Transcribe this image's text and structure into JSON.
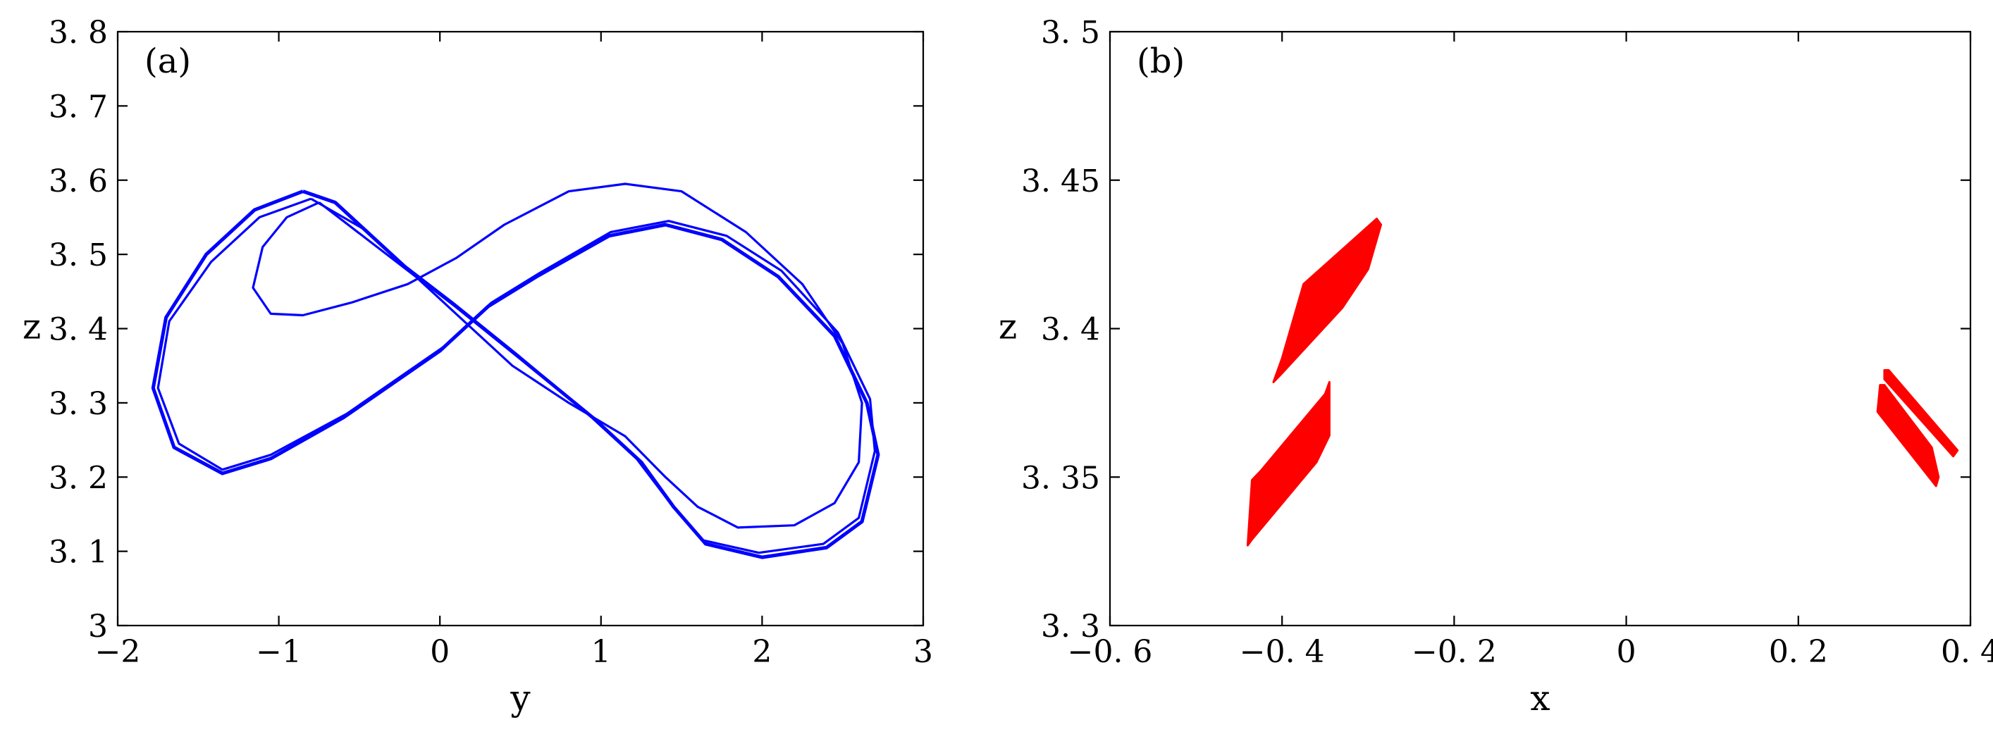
{
  "chart_data": [
    {
      "type": "line",
      "panel_label": "(a)",
      "xlabel": "y",
      "ylabel": "z",
      "xlim": [
        -2,
        3
      ],
      "ylim": [
        3,
        3.8
      ],
      "xticks": [
        -2,
        -1,
        0,
        1,
        2,
        3
      ],
      "xtick_labels": [
        "−2",
        "−1",
        "0",
        "1",
        "2",
        "3"
      ],
      "yticks": [
        3,
        3.1,
        3.2,
        3.3,
        3.4,
        3.5,
        3.6,
        3.7,
        3.8
      ],
      "ytick_labels": [
        "3",
        "3. 1",
        "3. 2",
        "3. 3",
        "3. 4",
        "3. 5",
        "3. 6",
        "3. 7",
        "3. 8"
      ],
      "color": "#0000ff",
      "grid": false,
      "series": [
        {
          "points": [
            [
              -0.85,
              3.585
            ],
            [
              -1.15,
              3.56
            ],
            [
              -1.45,
              3.5
            ],
            [
              -1.7,
              3.415
            ],
            [
              -1.78,
              3.32
            ],
            [
              -1.65,
              3.24
            ],
            [
              -1.35,
              3.205
            ],
            [
              -1.05,
              3.225
            ],
            [
              -0.6,
              3.28
            ],
            [
              0.0,
              3.37
            ],
            [
              0.3,
              3.43
            ],
            [
              0.6,
              3.47
            ],
            [
              1.05,
              3.525
            ],
            [
              1.4,
              3.54
            ],
            [
              1.75,
              3.52
            ],
            [
              2.1,
              3.47
            ],
            [
              2.45,
              3.39
            ],
            [
              2.65,
              3.3
            ],
            [
              2.72,
              3.23
            ],
            [
              2.62,
              3.14
            ],
            [
              2.4,
              3.105
            ],
            [
              2.0,
              3.092
            ],
            [
              1.65,
              3.11
            ],
            [
              1.45,
              3.16
            ],
            [
              1.25,
              3.22
            ],
            [
              0.95,
              3.28
            ],
            [
              0.5,
              3.36
            ],
            [
              0.1,
              3.43
            ],
            [
              -0.2,
              3.48
            ],
            [
              -0.45,
              3.53
            ],
            [
              -0.65,
              3.57
            ],
            [
              -0.85,
              3.585
            ]
          ]
        },
        {
          "points": [
            [
              -0.75,
              3.57
            ],
            [
              -0.95,
              3.55
            ],
            [
              -1.1,
              3.51
            ],
            [
              -1.16,
              3.455
            ],
            [
              -1.05,
              3.42
            ],
            [
              -0.85,
              3.418
            ],
            [
              -0.55,
              3.435
            ],
            [
              -0.2,
              3.46
            ],
            [
              0.1,
              3.495
            ],
            [
              0.4,
              3.54
            ],
            [
              0.8,
              3.585
            ],
            [
              1.15,
              3.595
            ],
            [
              1.5,
              3.585
            ],
            [
              1.9,
              3.53
            ],
            [
              2.25,
              3.46
            ],
            [
              2.5,
              3.38
            ],
            [
              2.62,
              3.3
            ],
            [
              2.6,
              3.22
            ],
            [
              2.45,
              3.165
            ],
            [
              2.2,
              3.135
            ],
            [
              1.85,
              3.132
            ],
            [
              1.6,
              3.16
            ],
            [
              1.4,
              3.2
            ],
            [
              1.15,
              3.255
            ],
            [
              0.8,
              3.3
            ],
            [
              0.45,
              3.35
            ],
            [
              0.15,
              3.41
            ],
            [
              -0.15,
              3.47
            ],
            [
              -0.45,
              3.52
            ],
            [
              -0.75,
              3.57
            ]
          ]
        },
        {
          "points": [
            [
              -0.8,
              3.575
            ],
            [
              -1.12,
              3.55
            ],
            [
              -1.42,
              3.49
            ],
            [
              -1.68,
              3.41
            ],
            [
              -1.75,
              3.32
            ],
            [
              -1.62,
              3.245
            ],
            [
              -1.35,
              3.21
            ],
            [
              -1.05,
              3.23
            ],
            [
              -0.58,
              3.285
            ],
            [
              0.02,
              3.375
            ],
            [
              0.32,
              3.435
            ],
            [
              0.62,
              3.475
            ],
            [
              1.06,
              3.53
            ],
            [
              1.42,
              3.545
            ],
            [
              1.78,
              3.525
            ],
            [
              2.12,
              3.478
            ],
            [
              2.47,
              3.395
            ],
            [
              2.67,
              3.305
            ],
            [
              2.7,
              3.235
            ],
            [
              2.6,
              3.145
            ],
            [
              2.38,
              3.11
            ],
            [
              1.98,
              3.098
            ],
            [
              1.63,
              3.115
            ],
            [
              1.43,
              3.165
            ],
            [
              1.22,
              3.225
            ],
            [
              0.92,
              3.285
            ],
            [
              0.48,
              3.365
            ],
            [
              0.08,
              3.435
            ],
            [
              -0.22,
              3.485
            ],
            [
              -0.48,
              3.535
            ],
            [
              -0.8,
              3.575
            ]
          ]
        }
      ]
    },
    {
      "type": "scatter",
      "panel_label": "(b)",
      "xlabel": "x",
      "ylabel": "z",
      "xlim": [
        -0.6,
        0.4
      ],
      "ylim": [
        3.3,
        3.5
      ],
      "xticks": [
        -0.6,
        -0.4,
        -0.2,
        0,
        0.2,
        0.4
      ],
      "xtick_labels": [
        "−0. 6",
        "−0. 4",
        "−0. 2",
        "0",
        "0. 2",
        "0. 4"
      ],
      "yticks": [
        3.3,
        3.35,
        3.4,
        3.45,
        3.5
      ],
      "ytick_labels": [
        "3. 3",
        "3. 35",
        "3. 4",
        "3. 45",
        "3. 5"
      ],
      "color": "#ff0000",
      "grid": false,
      "clusters": [
        {
          "points": [
            [
              -0.41,
              3.382
            ],
            [
              -0.4,
              3.39
            ],
            [
              -0.375,
              3.415
            ],
            [
              -0.29,
              3.437
            ],
            [
              -0.285,
              3.435
            ],
            [
              -0.3,
              3.42
            ],
            [
              -0.33,
              3.407
            ],
            [
              -0.4,
              3.385
            ]
          ]
        },
        {
          "points": [
            [
              -0.44,
              3.327
            ],
            [
              -0.435,
              3.349
            ],
            [
              -0.425,
              3.352
            ],
            [
              -0.35,
              3.378
            ],
            [
              -0.345,
              3.382
            ],
            [
              -0.345,
              3.364
            ],
            [
              -0.36,
              3.355
            ],
            [
              -0.435,
              3.329
            ]
          ]
        },
        {
          "points": [
            [
              0.295,
              3.381
            ],
            [
              0.292,
              3.372
            ],
            [
              0.36,
              3.347
            ],
            [
              0.363,
              3.35
            ],
            [
              0.355,
              3.36
            ],
            [
              0.3,
              3.381
            ]
          ]
        },
        {
          "points": [
            [
              0.3,
              3.386
            ],
            [
              0.305,
              3.386
            ],
            [
              0.385,
              3.359
            ],
            [
              0.38,
              3.357
            ],
            [
              0.3,
              3.383
            ]
          ]
        }
      ]
    }
  ]
}
